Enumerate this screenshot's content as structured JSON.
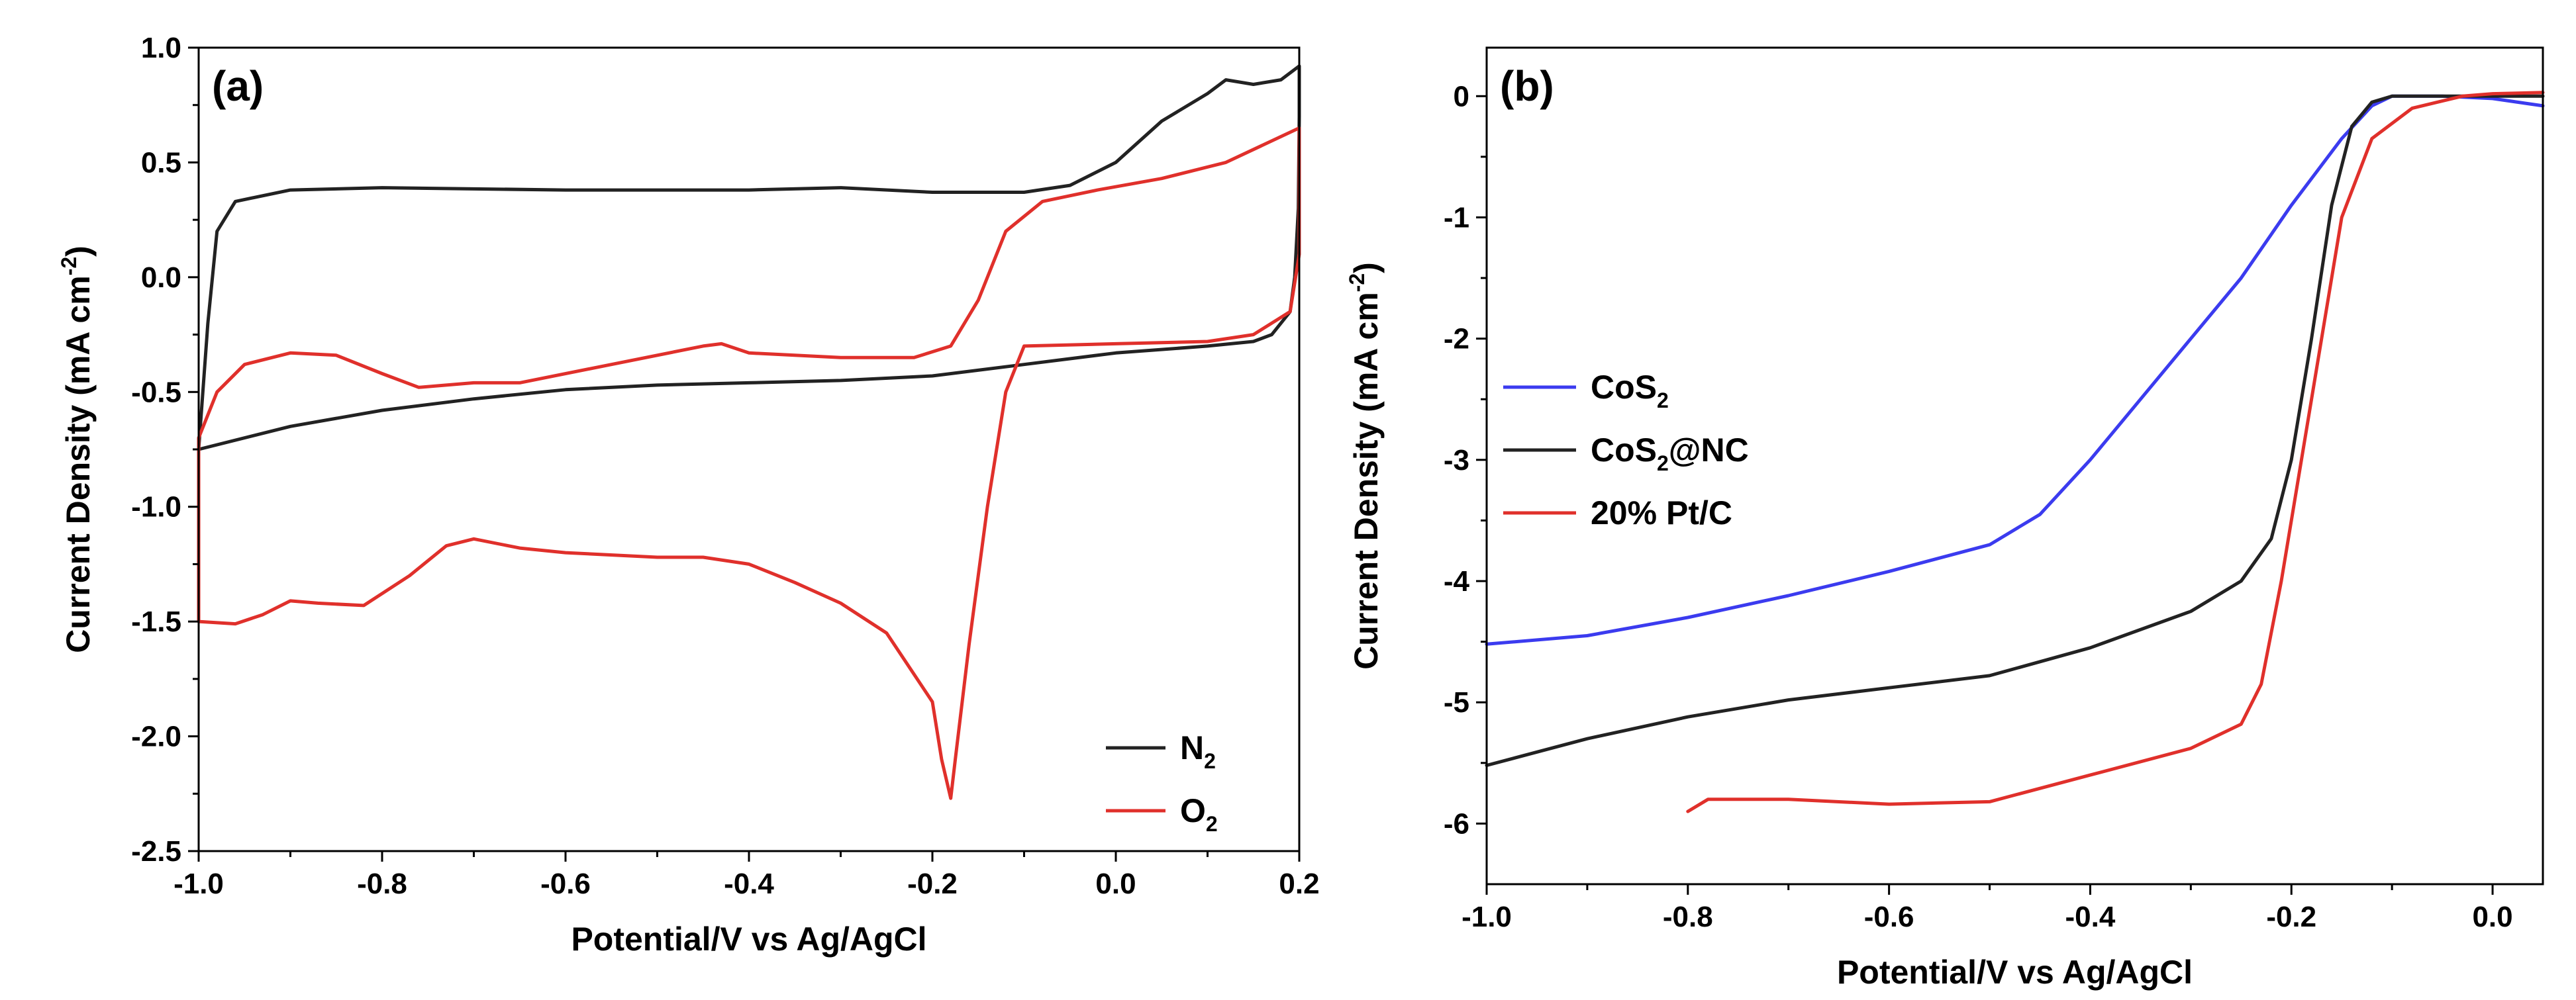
{
  "chart_data": [
    {
      "type": "line",
      "panel_label": "(a)",
      "xlabel": "Potential/V vs Ag/AgCl",
      "ylabel": "Current Density (mA cm",
      "ylabel_sup": "-2",
      "ylabel_close": ")",
      "xlim": [
        -1.0,
        0.2
      ],
      "ylim": [
        -2.5,
        1.0
      ],
      "xticks": [
        -1.0,
        -0.8,
        -0.6,
        -0.4,
        -0.2,
        0.0,
        0.2
      ],
      "xtick_labels": [
        "-1.0",
        "-0.8",
        "-0.6",
        "-0.4",
        "-0.2",
        "0.0",
        "0.2"
      ],
      "yticks": [
        -2.5,
        -2.0,
        -1.5,
        -1.0,
        -0.5,
        0.0,
        0.5,
        1.0
      ],
      "ytick_labels": [
        "-2.5",
        "-2.0",
        "-1.5",
        "-1.0",
        "-0.5",
        "0.0",
        "0.5",
        "1.0"
      ],
      "legend_position": "bottom-right",
      "series": [
        {
          "name": "N",
          "name_sub": "2",
          "color": "#222222",
          "points": [
            [
              -1.0,
              -0.75
            ],
            [
              -0.99,
              -0.2
            ],
            [
              -0.98,
              0.2
            ],
            [
              -0.96,
              0.33
            ],
            [
              -0.9,
              0.38
            ],
            [
              -0.8,
              0.39
            ],
            [
              -0.6,
              0.38
            ],
            [
              -0.4,
              0.38
            ],
            [
              -0.3,
              0.39
            ],
            [
              -0.2,
              0.37
            ],
            [
              -0.1,
              0.37
            ],
            [
              -0.05,
              0.4
            ],
            [
              0.0,
              0.5
            ],
            [
              0.05,
              0.68
            ],
            [
              0.1,
              0.8
            ],
            [
              0.12,
              0.86
            ],
            [
              0.15,
              0.84
            ],
            [
              0.18,
              0.86
            ],
            [
              0.2,
              0.92
            ],
            [
              0.2,
              0.7
            ],
            [
              0.199,
              0.3
            ],
            [
              0.195,
              0.0
            ],
            [
              0.19,
              -0.15
            ],
            [
              0.17,
              -0.25
            ],
            [
              0.15,
              -0.28
            ],
            [
              0.1,
              -0.3
            ],
            [
              0.0,
              -0.33
            ],
            [
              -0.1,
              -0.38
            ],
            [
              -0.2,
              -0.43
            ],
            [
              -0.3,
              -0.45
            ],
            [
              -0.4,
              -0.46
            ],
            [
              -0.5,
              -0.47
            ],
            [
              -0.6,
              -0.49
            ],
            [
              -0.7,
              -0.53
            ],
            [
              -0.8,
              -0.58
            ],
            [
              -0.9,
              -0.65
            ],
            [
              -1.0,
              -0.75
            ]
          ]
        },
        {
          "name": "O",
          "name_sub": "2",
          "color": "#e0302b",
          "points": [
            [
              -1.0,
              -1.5
            ],
            [
              -1.0,
              -0.7
            ],
            [
              -0.98,
              -0.5
            ],
            [
              -0.95,
              -0.38
            ],
            [
              -0.9,
              -0.33
            ],
            [
              -0.85,
              -0.34
            ],
            [
              -0.8,
              -0.42
            ],
            [
              -0.76,
              -0.48
            ],
            [
              -0.7,
              -0.46
            ],
            [
              -0.65,
              -0.46
            ],
            [
              -0.55,
              -0.38
            ],
            [
              -0.45,
              -0.3
            ],
            [
              -0.43,
              -0.29
            ],
            [
              -0.4,
              -0.33
            ],
            [
              -0.3,
              -0.35
            ],
            [
              -0.22,
              -0.35
            ],
            [
              -0.18,
              -0.3
            ],
            [
              -0.15,
              -0.1
            ],
            [
              -0.12,
              0.2
            ],
            [
              -0.08,
              0.33
            ],
            [
              -0.02,
              0.38
            ],
            [
              0.05,
              0.43
            ],
            [
              0.12,
              0.5
            ],
            [
              0.2,
              0.65
            ],
            [
              0.2,
              0.1
            ],
            [
              0.19,
              -0.15
            ],
            [
              0.15,
              -0.25
            ],
            [
              0.1,
              -0.28
            ],
            [
              0.0,
              -0.29
            ],
            [
              -0.1,
              -0.3
            ],
            [
              -0.12,
              -0.5
            ],
            [
              -0.14,
              -1.0
            ],
            [
              -0.16,
              -1.6
            ],
            [
              -0.175,
              -2.1
            ],
            [
              -0.18,
              -2.27
            ],
            [
              -0.19,
              -2.1
            ],
            [
              -0.2,
              -1.85
            ],
            [
              -0.25,
              -1.55
            ],
            [
              -0.3,
              -1.42
            ],
            [
              -0.35,
              -1.33
            ],
            [
              -0.4,
              -1.25
            ],
            [
              -0.45,
              -1.22
            ],
            [
              -0.5,
              -1.22
            ],
            [
              -0.6,
              -1.2
            ],
            [
              -0.65,
              -1.18
            ],
            [
              -0.7,
              -1.14
            ],
            [
              -0.73,
              -1.17
            ],
            [
              -0.77,
              -1.3
            ],
            [
              -0.82,
              -1.43
            ],
            [
              -0.87,
              -1.42
            ],
            [
              -0.9,
              -1.41
            ],
            [
              -0.93,
              -1.47
            ],
            [
              -0.96,
              -1.51
            ],
            [
              -1.0,
              -1.5
            ]
          ]
        }
      ]
    },
    {
      "type": "line",
      "panel_label": "(b)",
      "xlabel": "Potential/V vs Ag/AgCl",
      "ylabel": "Current Density (mA cm",
      "ylabel_sup": "-2",
      "ylabel_close": ")",
      "xlim": [
        -1.0,
        0.05
      ],
      "ylim": [
        -6.5,
        0.4
      ],
      "xticks": [
        -1.0,
        -0.8,
        -0.6,
        -0.4,
        -0.2,
        0.0
      ],
      "xtick_labels": [
        "-1.0",
        "-0.8",
        "-0.6",
        "-0.4",
        "-0.2",
        "0.0"
      ],
      "yticks": [
        -6,
        -5,
        -4,
        -3,
        -2,
        -1,
        0
      ],
      "ytick_labels": [
        "-6",
        "-5",
        "-4",
        "-3",
        "-2",
        "-1",
        "0"
      ],
      "legend_position": "middle-left",
      "series": [
        {
          "name": "CoS",
          "name_sub": "2",
          "name_suffix": "",
          "color": "#3b3bef",
          "points": [
            [
              -1.0,
              -4.52
            ],
            [
              -0.9,
              -4.45
            ],
            [
              -0.8,
              -4.3
            ],
            [
              -0.7,
              -4.12
            ],
            [
              -0.6,
              -3.92
            ],
            [
              -0.5,
              -3.7
            ],
            [
              -0.45,
              -3.45
            ],
            [
              -0.4,
              -3.0
            ],
            [
              -0.35,
              -2.5
            ],
            [
              -0.3,
              -2.0
            ],
            [
              -0.25,
              -1.5
            ],
            [
              -0.2,
              -0.9
            ],
            [
              -0.15,
              -0.35
            ],
            [
              -0.12,
              -0.08
            ],
            [
              -0.1,
              0.0
            ],
            [
              -0.05,
              0.0
            ],
            [
              0.0,
              -0.02
            ],
            [
              0.05,
              -0.08
            ]
          ]
        },
        {
          "name": "CoS",
          "name_sub": "2",
          "name_suffix": "@NC",
          "color": "#222222",
          "points": [
            [
              -1.0,
              -5.52
            ],
            [
              -0.9,
              -5.3
            ],
            [
              -0.8,
              -5.12
            ],
            [
              -0.7,
              -4.98
            ],
            [
              -0.6,
              -4.88
            ],
            [
              -0.5,
              -4.78
            ],
            [
              -0.4,
              -4.55
            ],
            [
              -0.3,
              -4.25
            ],
            [
              -0.25,
              -4.0
            ],
            [
              -0.22,
              -3.65
            ],
            [
              -0.2,
              -3.0
            ],
            [
              -0.18,
              -2.0
            ],
            [
              -0.16,
              -0.9
            ],
            [
              -0.14,
              -0.25
            ],
            [
              -0.12,
              -0.05
            ],
            [
              -0.1,
              0.0
            ],
            [
              0.0,
              0.0
            ],
            [
              0.05,
              0.0
            ]
          ]
        },
        {
          "name": "20% Pt/C",
          "name_sub": "",
          "name_suffix": "",
          "color": "#e0302b",
          "points": [
            [
              -0.8,
              -5.9
            ],
            [
              -0.78,
              -5.8
            ],
            [
              -0.7,
              -5.8
            ],
            [
              -0.6,
              -5.84
            ],
            [
              -0.5,
              -5.82
            ],
            [
              -0.4,
              -5.6
            ],
            [
              -0.3,
              -5.38
            ],
            [
              -0.25,
              -5.18
            ],
            [
              -0.23,
              -4.85
            ],
            [
              -0.21,
              -4.0
            ],
            [
              -0.19,
              -3.0
            ],
            [
              -0.17,
              -2.0
            ],
            [
              -0.15,
              -1.0
            ],
            [
              -0.12,
              -0.35
            ],
            [
              -0.08,
              -0.1
            ],
            [
              -0.03,
              0.0
            ],
            [
              0.0,
              0.02
            ],
            [
              0.05,
              0.03
            ]
          ]
        }
      ]
    }
  ]
}
